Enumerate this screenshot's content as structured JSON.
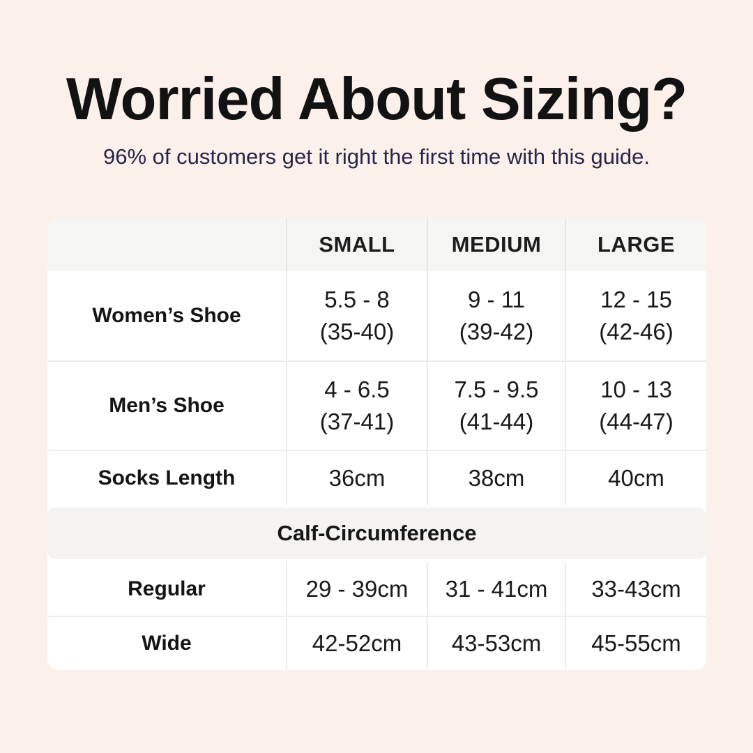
{
  "colors": {
    "background": "#fcf1ea",
    "subtitle": "#28244a",
    "table_header_bg": "#f5f5f3",
    "section_bar_bg": "#f4f3f1"
  },
  "chart_data": {
    "type": "table",
    "title": "Worried About Sizing?",
    "subtitle": "96% of customers get it right the first time with this guide.",
    "columns": [
      "",
      "SMALL",
      "MEDIUM",
      "LARGE"
    ],
    "rows": [
      {
        "label": "Women’s Shoe",
        "small": "5.5 - 8\n(35-40)",
        "medium": "9 - 11\n(39-42)",
        "large": "12 - 15\n(42-46)"
      },
      {
        "label": "Men’s Shoe",
        "small": "4 - 6.5\n(37-41)",
        "medium": "7.5 - 9.5\n(41-44)",
        "large": "10 - 13\n(44-47)"
      },
      {
        "label": "Socks Length",
        "small": "36cm",
        "medium": "38cm",
        "large": "40cm"
      }
    ],
    "section_header": "Calf-Circumference",
    "section_rows": [
      {
        "label": "Regular",
        "small": "29 - 39cm",
        "medium": "31 - 41cm",
        "large": "33-43cm"
      },
      {
        "label": "Wide",
        "small": "42-52cm",
        "medium": "43-53cm",
        "large": "45-55cm"
      }
    ]
  }
}
